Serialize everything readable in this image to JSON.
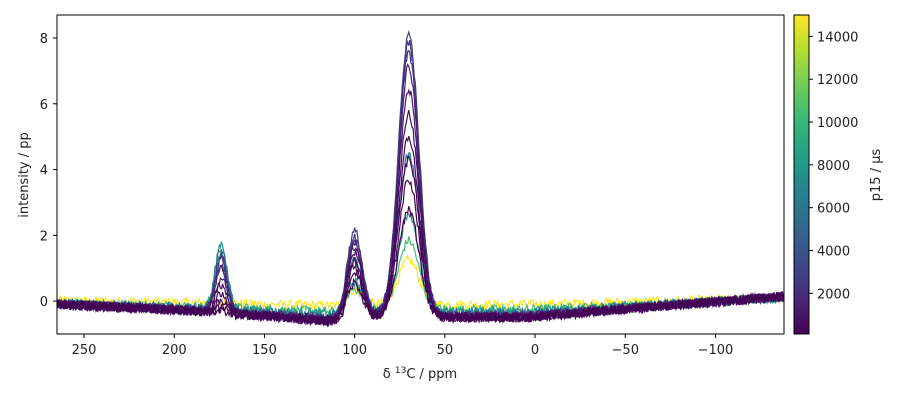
{
  "chart_data": {
    "type": "line",
    "title": "",
    "xlabel_prefix": "δ ",
    "xlabel_sup": "13",
    "xlabel_suffix": "C / ppm",
    "ylabel": "intensity / pp",
    "xlim": [
      265,
      -138
    ],
    "ylim": [
      -1.0,
      8.7
    ],
    "x_reversed": true,
    "grid": false,
    "x_ticks": [
      250,
      200,
      150,
      100,
      50,
      0,
      -50,
      -100
    ],
    "x_tick_labels": [
      "250",
      "200",
      "150",
      "100",
      "50",
      "0",
      "−50",
      "−100"
    ],
    "y_ticks": [
      0,
      2,
      4,
      6,
      8
    ],
    "y_tick_labels": [
      "0",
      "2",
      "4",
      "6",
      "8"
    ],
    "colorbar": {
      "label": "p15 / µs",
      "colormap": "viridis",
      "range": [
        100,
        15000
      ],
      "ticks": [
        2000,
        4000,
        6000,
        8000,
        10000,
        12000,
        14000
      ],
      "tick_labels": [
        "2000",
        "4000",
        "6000",
        "8000",
        "10000",
        "12000",
        "14000"
      ]
    },
    "peaks_ppm": [
      174,
      100,
      70
    ],
    "series": [
      {
        "p15": 100,
        "peaks": [
          0.05,
          1.05,
          3.3
        ]
      },
      {
        "p15": 200,
        "peaks": [
          0.15,
          1.35,
          4.2
        ]
      },
      {
        "p15": 300,
        "peaks": [
          0.35,
          1.55,
          4.8
        ]
      },
      {
        "p15": 500,
        "peaks": [
          0.6,
          1.75,
          5.5
        ]
      },
      {
        "p15": 700,
        "peaks": [
          0.85,
          1.95,
          6.2
        ]
      },
      {
        "p15": 1000,
        "peaks": [
          1.05,
          2.1,
          6.9
        ]
      },
      {
        "p15": 1500,
        "peaks": [
          1.3,
          2.25,
          7.6
        ]
      },
      {
        "p15": 2000,
        "peaks": [
          1.45,
          2.35,
          8.0
        ]
      },
      {
        "p15": 2500,
        "peaks": [
          1.6,
          2.45,
          8.3
        ]
      },
      {
        "p15": 3000,
        "peaks": [
          1.7,
          2.55,
          8.55
        ]
      },
      {
        "p15": 6000,
        "peaks": [
          1.9,
          1.6,
          4.8
        ]
      },
      {
        "p15": 8000,
        "peaks": [
          2.0,
          0.9,
          3.0
        ]
      },
      {
        "p15": 10500,
        "peaks": [
          1.6,
          0.65,
          2.1
        ]
      },
      {
        "p15": 15000,
        "peaks": [
          0.0,
          0.45,
          1.35
        ]
      }
    ]
  }
}
